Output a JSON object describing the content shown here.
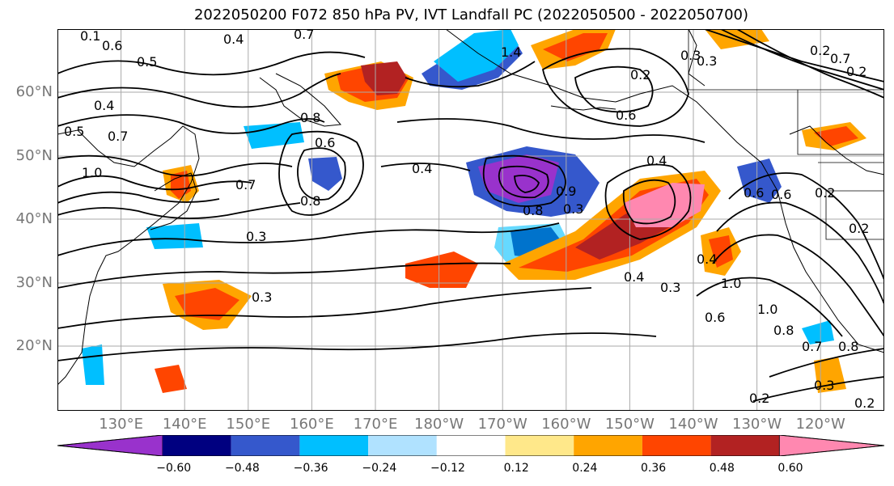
{
  "title": "2022050200 F072 850 hPa PV, IVT Landfall PC (2022050500 - 2022050700)",
  "axes": {
    "lat_labels": [
      "60°N",
      "50°N",
      "40°N",
      "30°N",
      "20°N"
    ],
    "lon_labels": [
      "130°E",
      "140°E",
      "150°E",
      "160°E",
      "170°E",
      "180°W",
      "170°W",
      "160°W",
      "150°W",
      "140°W",
      "130°W",
      "120°W"
    ]
  },
  "colorbar": {
    "colors": [
      "#9932cc",
      "#000080",
      "#3558cc",
      "#00bfff",
      "#b0e2ff",
      "#ffffff",
      "#ffe88a",
      "#ffa500",
      "#ff4500",
      "#b22222",
      "#ff88b0"
    ],
    "tick_labels": [
      "−0.60",
      "−0.48",
      "−0.36",
      "−0.24",
      "−0.12",
      "0.12",
      "0.24",
      "0.36",
      "0.48",
      "0.60"
    ]
  },
  "contour_labels": [
    "0.1",
    "0.6",
    "0.4",
    "0.7",
    "0.5",
    "0.4",
    "0.5",
    "0.7",
    "0.7",
    "0.8",
    "0.8",
    "0.6",
    "0.4",
    "0.3",
    "0.2",
    "0.3",
    "0.4",
    "0.6",
    "0.6",
    "0.8",
    "0.9",
    "0.3",
    "0.4",
    "0.3",
    "0.4",
    "1.0",
    "0.6",
    "1.0",
    "0.8",
    "0.7",
    "0.8",
    "0.3",
    "0.2",
    "0.2",
    "0.3",
    "0.2",
    "0.6",
    "0.2",
    "0.2",
    "0.7",
    "0.2",
    "0.3",
    "1.0",
    "1.4"
  ]
}
